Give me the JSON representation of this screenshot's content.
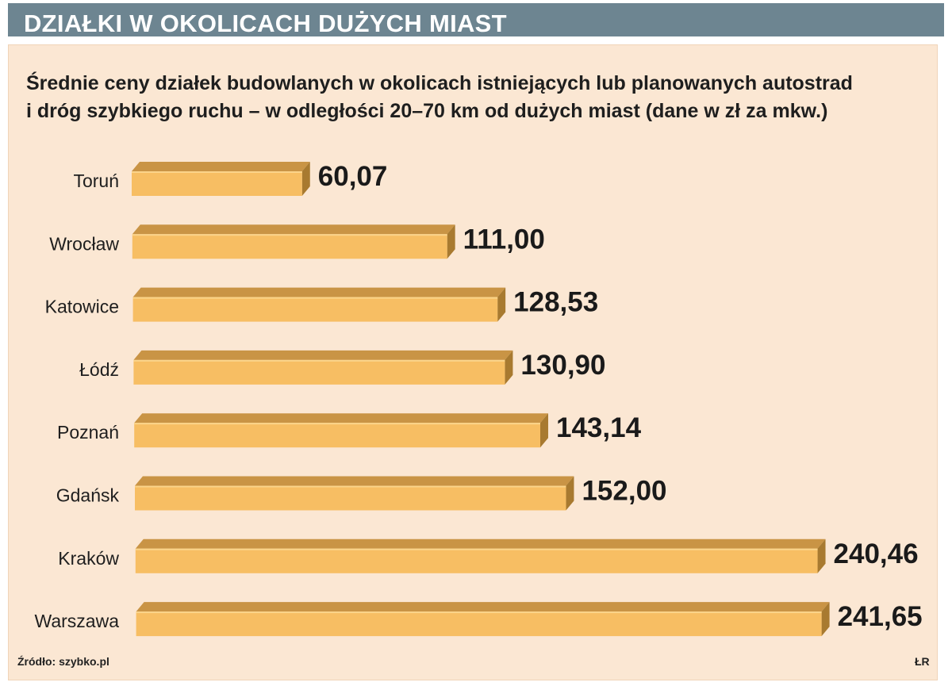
{
  "header": {
    "title": "DZIAŁKI W OKOLICACH DUŻYCH MIAST"
  },
  "subtitle": {
    "line1": "Średnie ceny działek budowlanych w okolicach istniejących lub planowanych autostrad",
    "line2": "i dróg szybkiego ruchu – w odległości 20–70 km od dużych miast (dane w zł za mkw.)"
  },
  "footer": {
    "source": "Źródło: szybko.pl",
    "credit": "ŁR"
  },
  "colors": {
    "header_bg": "#6d8591",
    "panel_bg": "#fbe7d3",
    "bar_front": "#f7be63",
    "bar_top": "#c99445",
    "bar_side": "#a87a30"
  },
  "chart_data": {
    "type": "bar",
    "orientation": "horizontal",
    "style": "3d",
    "categories": [
      "Toruń",
      "Wrocław",
      "Katowice",
      "Łódź",
      "Poznań",
      "Gdańsk",
      "Kraków",
      "Warszawa"
    ],
    "values": [
      60.07,
      111.0,
      128.53,
      130.9,
      143.14,
      152.0,
      240.46,
      241.65
    ],
    "value_labels": [
      "60,07",
      "111,00",
      "128,53",
      "130,90",
      "143,14",
      "152,00",
      "240,46",
      "241,65"
    ],
    "unit": "zł za mkw.",
    "xlim": [
      0,
      241.65
    ],
    "grid": false,
    "legend": "none"
  }
}
